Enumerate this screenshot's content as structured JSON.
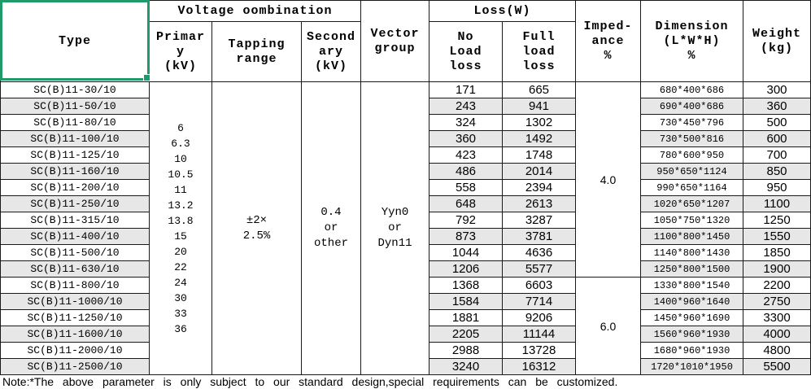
{
  "header": {
    "type": "Type",
    "voltage_combination": "Voltage oombination",
    "primary": "Primar\ny\n(kV)",
    "tapping": "Tapping\nrange",
    "secondary": "Second\nary\n(kV)",
    "vector": "Vector\ngroup",
    "loss": "Loss(W)",
    "no_load": "No\nLoad\nloss",
    "full_load": "Full\nload\nloss",
    "impedance": "Imped-\nance\n%",
    "dimension": "Dimension\n(L*W*H)\n%",
    "weight": "Weight\n(kg)"
  },
  "merged": {
    "primary_values": "6\n6.3\n10\n10.5\n11\n13.2\n13.8\n15\n20\n22\n24\n30\n33\n36",
    "tapping_range": "±2×\n2.5%",
    "secondary": "0.4\nor\nother",
    "vector_group": "Yyn0\nor\nDyn11",
    "impedance_low": "4.0",
    "impedance_high": "6.0"
  },
  "rows": [
    {
      "type": "SC(B)11-30/10",
      "no_load": "171",
      "full_load": "665",
      "dimension": "680*400*686",
      "weight": "300"
    },
    {
      "type": "SC(B)11-50/10",
      "no_load": "243",
      "full_load": "941",
      "dimension": "690*400*686",
      "weight": "360"
    },
    {
      "type": "SC(B)11-80/10",
      "no_load": "324",
      "full_load": "1302",
      "dimension": "730*450*796",
      "weight": "500"
    },
    {
      "type": "SC(B)11-100/10",
      "no_load": "360",
      "full_load": "1492",
      "dimension": "730*500*816",
      "weight": "600"
    },
    {
      "type": "SC(B)11-125/10",
      "no_load": "423",
      "full_load": "1748",
      "dimension": "780*600*950",
      "weight": "700"
    },
    {
      "type": "SC(B)11-160/10",
      "no_load": "486",
      "full_load": "2014",
      "dimension": "950*650*1124",
      "weight": "850"
    },
    {
      "type": "SC(B)11-200/10",
      "no_load": "558",
      "full_load": "2394",
      "dimension": "990*650*1164",
      "weight": "950"
    },
    {
      "type": "SC(B)11-250/10",
      "no_load": "648",
      "full_load": "2613",
      "dimension": "1020*650*1207",
      "weight": "1100"
    },
    {
      "type": "SC(B)11-315/10",
      "no_load": "792",
      "full_load": "3287",
      "dimension": "1050*750*1320",
      "weight": "1250"
    },
    {
      "type": "SC(B)11-400/10",
      "no_load": "873",
      "full_load": "3781",
      "dimension": "1100*800*1450",
      "weight": "1550"
    },
    {
      "type": "SC(B)11-500/10",
      "no_load": "1044",
      "full_load": "4636",
      "dimension": "1140*800*1430",
      "weight": "1850"
    },
    {
      "type": "SC(B)11-630/10",
      "no_load": "1206",
      "full_load": "5577",
      "dimension": "1250*800*1500",
      "weight": "1900"
    },
    {
      "type": "SC(B)11-800/10",
      "no_load": "1368",
      "full_load": "6603",
      "dimension": "1330*800*1540",
      "weight": "2200"
    },
    {
      "type": "SC(B)11-1000/10",
      "no_load": "1584",
      "full_load": "7714",
      "dimension": "1400*960*1640",
      "weight": "2750"
    },
    {
      "type": "SC(B)11-1250/10",
      "no_load": "1881",
      "full_load": "9206",
      "dimension": "1450*960*1690",
      "weight": "3300"
    },
    {
      "type": "SC(B)11-1600/10",
      "no_load": "2205",
      "full_load": "11144",
      "dimension": "1560*960*1930",
      "weight": "4000"
    },
    {
      "type": "SC(B)11-2000/10",
      "no_load": "2988",
      "full_load": "13728",
      "dimension": "1680*960*1930",
      "weight": "4800"
    },
    {
      "type": "SC(B)11-2500/10",
      "no_load": "3240",
      "full_load": "16312",
      "dimension": "1720*1010*1950",
      "weight": "5500"
    }
  ],
  "note": "Note:*The above parameter is only subject to our standard design,special requirements can be customized.",
  "colors": {
    "selection_green": "#219a6b",
    "stripe_gray": "#e7e7e7",
    "border_black": "#1a1a1a"
  }
}
